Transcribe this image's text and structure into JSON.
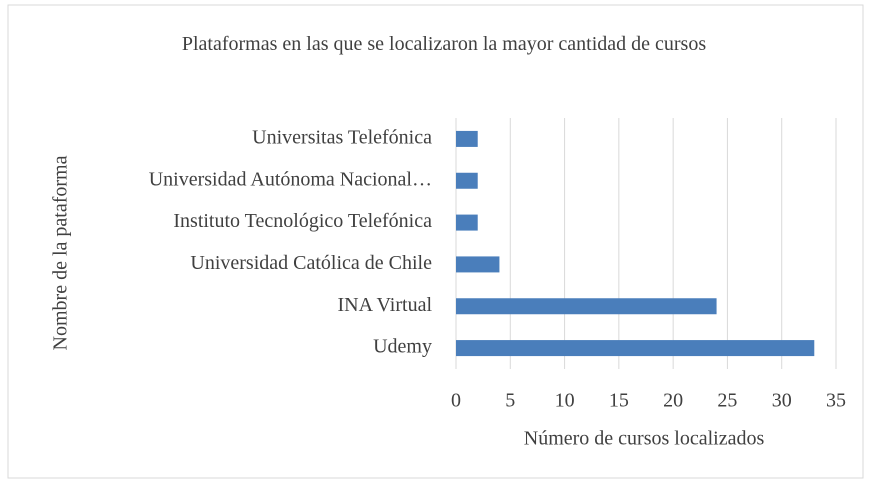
{
  "chart_data": {
    "type": "bar",
    "orientation": "horizontal",
    "title": "Plataformas en las que se localizaron la mayor cantidad de cursos",
    "x_label": "Número de cursos localizados",
    "y_label": "Nombre de la pataforma",
    "categories": [
      "Universitas Telefónica",
      "Universidad Autónoma Nacional…",
      "Instituto Tecnológico Telefónica",
      "Universidad Católica de Chile",
      "INA Virtual",
      "Udemy"
    ],
    "values": [
      2,
      2,
      2,
      4,
      24,
      33
    ],
    "color": "#4a7ebb",
    "xlim": [
      0,
      35
    ],
    "xticks": [
      0,
      5,
      10,
      15,
      20,
      25,
      30,
      35
    ],
    "grid": true
  }
}
